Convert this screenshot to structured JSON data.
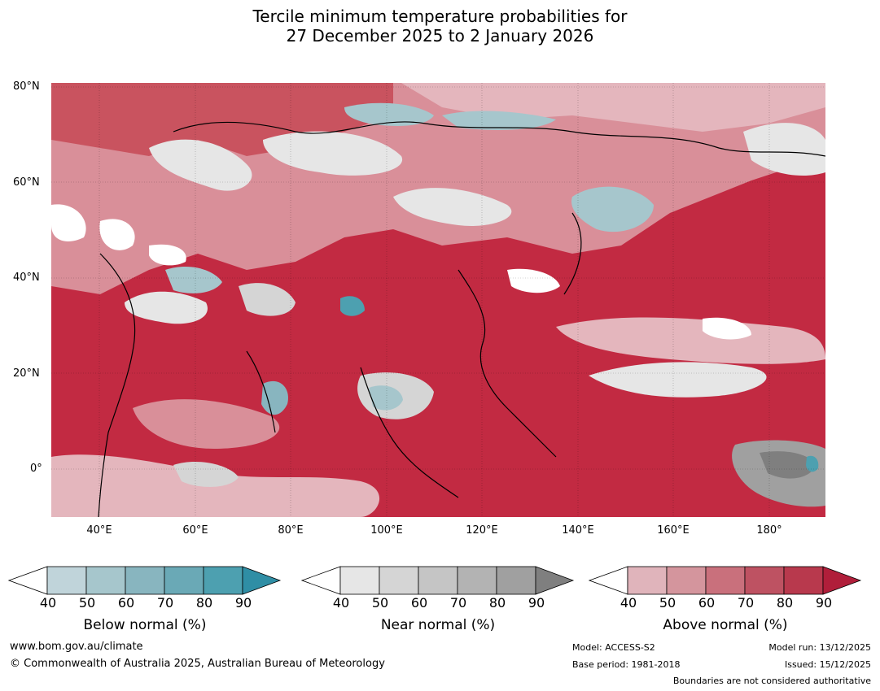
{
  "title": {
    "line1": "Tercile minimum temperature probabilities for",
    "line2": "27 December 2025 to 2 January 2026"
  },
  "map": {
    "lat_labels": [
      "80°N",
      "60°N",
      "40°N",
      "20°N",
      "0°"
    ],
    "lon_labels": [
      "40°E",
      "60°E",
      "80°E",
      "100°E",
      "120°E",
      "140°E",
      "160°E",
      "180°"
    ],
    "background_color": "#c0283f"
  },
  "legends": [
    {
      "name": "Below normal (%)",
      "ticks": [
        "40",
        "50",
        "60",
        "70",
        "80",
        "90"
      ],
      "colors": [
        "#ffffff",
        "#c0d4da",
        "#a6c6cc",
        "#88b5bf",
        "#6aa9b6",
        "#4da0b0",
        "#2f8ea5"
      ]
    },
    {
      "name": "Near normal (%)",
      "ticks": [
        "40",
        "50",
        "60",
        "70",
        "80",
        "90"
      ],
      "colors": [
        "#ffffff",
        "#e6e6e6",
        "#d5d5d5",
        "#c5c5c5",
        "#b3b3b3",
        "#a0a0a0",
        "#7f7f7f"
      ]
    },
    {
      "name": "Above normal (%)",
      "ticks": [
        "40",
        "50",
        "60",
        "70",
        "80",
        "90"
      ],
      "colors": [
        "#ffffff",
        "#e0b4bb",
        "#d4959d",
        "#c9707c",
        "#be5262",
        "#b8394d",
        "#b01e3a"
      ]
    }
  ],
  "footer": {
    "website": "www.bom.gov.au/climate",
    "copyright": "© Commonwealth of Australia 2025, Australian Bureau of Meteorology",
    "model": "Model: ACCESS-S2",
    "base_period": "Base period: 1981-2018",
    "model_run": "Model run: 13/12/2025",
    "issued": "Issued: 15/12/2025",
    "disclaimer": "Boundaries are not considered authoritative"
  }
}
